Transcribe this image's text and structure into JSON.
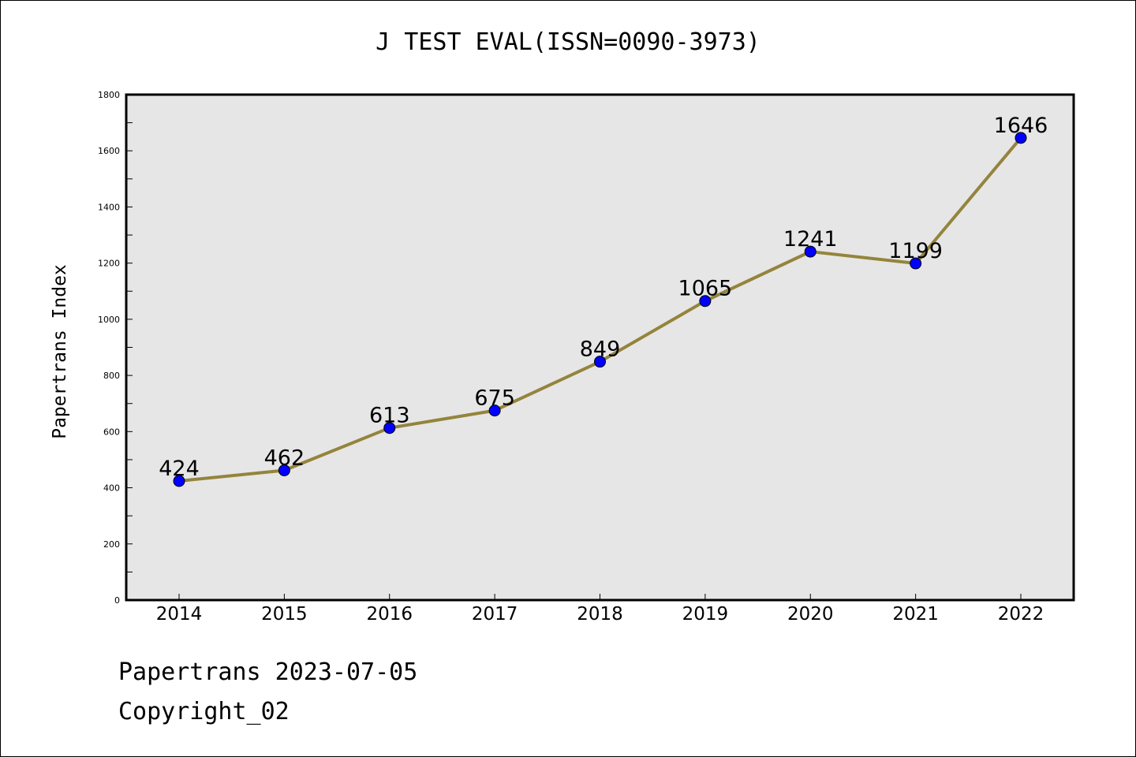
{
  "chart_data": {
    "type": "line",
    "title": "J TEST EVAL(ISSN=0090-3973)",
    "xlabel": "",
    "ylabel": "Papertrans Index",
    "categories": [
      "2014",
      "2015",
      "2016",
      "2017",
      "2018",
      "2019",
      "2020",
      "2021",
      "2022"
    ],
    "series": [
      {
        "values": [
          424,
          462,
          613,
          675,
          849,
          1065,
          1241,
          1199,
          1646
        ]
      }
    ],
    "data_labels": [
      "424",
      "462",
      "613",
      "675",
      "849",
      "1065",
      "1241",
      "1199",
      "1646"
    ],
    "ylim": [
      0,
      1800
    ],
    "yticks": [
      0,
      200,
      400,
      600,
      800,
      1000,
      1200,
      1400,
      1600,
      1800
    ],
    "ytick_labels": [
      "0",
      "200",
      "400",
      "600",
      "800",
      "1000",
      "1200",
      "1400",
      "1600",
      "1800"
    ],
    "grid": false,
    "legend": "none",
    "colors": {
      "line": "#94843c",
      "marker": "#0000ff",
      "plot_background": "#e6e6e6"
    }
  },
  "footer": {
    "date_line": "Papertrans 2023-07-05",
    "copyright": "Copyright_02"
  }
}
